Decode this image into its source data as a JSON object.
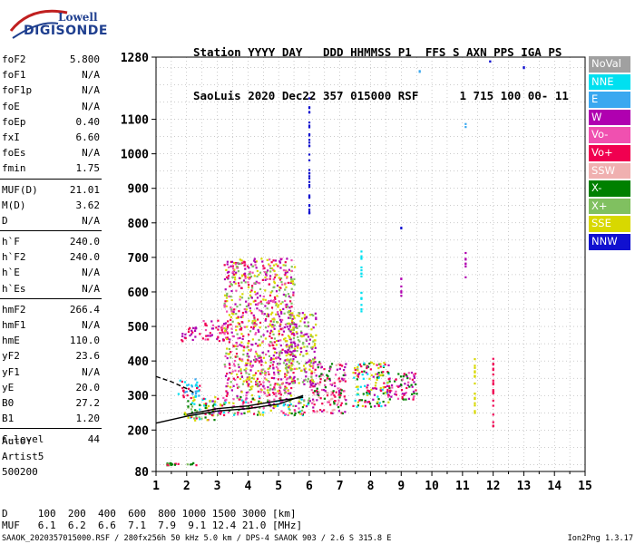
{
  "logo": {
    "brand": "Lowell",
    "product": "DIGISONDE"
  },
  "header": {
    "line1": "Station YYYY DAY   DDD HHMMSS P1  FFS S AXN PPS IGA PS",
    "line2": "SaoLuis 2020 Dec22 357 015000 RSF      1 715 100 00- 11"
  },
  "params": [
    {
      "label": "foF2",
      "value": "5.800"
    },
    {
      "label": "foF1",
      "value": "N/A"
    },
    {
      "label": "foF1p",
      "value": "N/A"
    },
    {
      "label": "foE",
      "value": "N/A"
    },
    {
      "label": "foEp",
      "value": "0.40"
    },
    {
      "label": "fxI",
      "value": "6.60"
    },
    {
      "label": "foEs",
      "value": "N/A"
    },
    {
      "label": "fmin",
      "value": "1.75"
    },
    {
      "label": "MUF(D)",
      "value": "21.01"
    },
    {
      "label": "M(D)",
      "value": "3.62"
    },
    {
      "label": "D",
      "value": "N/A"
    },
    {
      "label": "h`F",
      "value": "240.0"
    },
    {
      "label": "h`F2",
      "value": "240.0"
    },
    {
      "label": "h`E",
      "value": "N/A"
    },
    {
      "label": "h`Es",
      "value": "N/A"
    },
    {
      "label": "hmF2",
      "value": "266.4"
    },
    {
      "label": "hmF1",
      "value": "N/A"
    },
    {
      "label": "hmE",
      "value": "110.0"
    },
    {
      "label": "yF2",
      "value": "23.6"
    },
    {
      "label": "yF1",
      "value": "N/A"
    },
    {
      "label": "yE",
      "value": "20.0"
    },
    {
      "label": "B0",
      "value": "27.2"
    },
    {
      "label": "B1",
      "value": "1.20"
    },
    {
      "label": "C-level",
      "value": "44"
    }
  ],
  "auto": {
    "line1": "Auto:",
    "line2": "Artist5",
    "line3": "500200"
  },
  "muf_table": {
    "d_row": "D     100  200  400  600  800 1000 1500 3000 [km]",
    "muf_row": "MUF   6.1  6.2  6.6  7.1  7.9  9.1 12.4 21.0 [MHz]"
  },
  "footer": {
    "text": "SAAOK_2020357015000.RSF / 280fx256h 50 kHz 5.0 km / DPS-4 SAAOK 903 / 2.6 S 315.8 E",
    "version": "Ion2Png 1.3.17"
  },
  "legend": [
    {
      "label": "NoVal",
      "color": "#a0a0a0"
    },
    {
      "label": "NNE",
      "color": "#00e0f0"
    },
    {
      "label": "E",
      "color": "#3aa8f0"
    },
    {
      "label": "W",
      "color": "#b000b0"
    },
    {
      "label": "Vo-",
      "color": "#f050b0"
    },
    {
      "label": "Vo+",
      "color": "#f00050"
    },
    {
      "label": "SSW",
      "color": "#f0b0b0"
    },
    {
      "label": "X-",
      "color": "#008000"
    },
    {
      "label": "X+",
      "color": "#80c060"
    },
    {
      "label": "SSE",
      "color": "#d8d800"
    },
    {
      "label": "NNW",
      "color": "#1010d0"
    }
  ],
  "chart_data": {
    "type": "scatter",
    "xlim": [
      1,
      15
    ],
    "ylim": [
      80,
      1280
    ],
    "x_ticks": [
      "1",
      "2",
      "3",
      "4",
      "5",
      "6",
      "7",
      "8",
      "9",
      "10",
      "11",
      "12",
      "13",
      "14",
      "15"
    ],
    "y_ticks": [
      {
        "value": 80,
        "label": "80"
      },
      {
        "value": 200,
        "label": "200"
      },
      {
        "value": 300,
        "label": "300"
      },
      {
        "value": 400,
        "label": "400"
      },
      {
        "value": 500,
        "label": "500"
      },
      {
        "value": 600,
        "label": "600"
      },
      {
        "value": 700,
        "label": "700"
      },
      {
        "value": 800,
        "label": "800"
      },
      {
        "value": 900,
        "label": "900"
      },
      {
        "value": 1000,
        "label": "1000"
      },
      {
        "value": 1100,
        "label": "1100"
      },
      {
        "value": 1280,
        "label": "1280"
      }
    ],
    "grid": true,
    "echo_clusters": [
      {
        "x": [
          1.7,
          2.4
        ],
        "y": [
          290,
          350
        ],
        "colors": [
          "#00e0f0",
          "#3aa8f0",
          "#f00050"
        ]
      },
      {
        "x": [
          1.9,
          2.9
        ],
        "y": [
          230,
          300
        ],
        "colors": [
          "#f00050",
          "#00e0f0",
          "#008000",
          "#d8d800",
          "#80c060"
        ]
      },
      {
        "x": [
          2.8,
          6.0
        ],
        "y": [
          245,
          300
        ],
        "colors": [
          "#f00050",
          "#f050b0",
          "#b000b0",
          "#d8d800",
          "#008000",
          "#80c060",
          "#00e0f0"
        ]
      },
      {
        "x": [
          6.0,
          7.2
        ],
        "y": [
          250,
          400
        ],
        "colors": [
          "#f00050",
          "#f050b0",
          "#b000b0",
          "#008000",
          "#f0b0b0"
        ]
      },
      {
        "x": [
          7.4,
          8.6
        ],
        "y": [
          270,
          400
        ],
        "colors": [
          "#f00050",
          "#d8d800",
          "#b000b0",
          "#008000",
          "#00e0f0"
        ]
      },
      {
        "x": [
          8.5,
          9.5
        ],
        "y": [
          290,
          370
        ],
        "colors": [
          "#f00050",
          "#b000b0",
          "#008000",
          "#f050b0"
        ]
      },
      {
        "x": [
          2.5,
          3.4
        ],
        "y": [
          460,
          520
        ],
        "colors": [
          "#b000b0",
          "#f00050",
          "#f050b0"
        ]
      },
      {
        "x": [
          1.8,
          2.4
        ],
        "y": [
          460,
          500
        ],
        "colors": [
          "#f00050",
          "#b000b0"
        ]
      },
      {
        "x": [
          3.2,
          5.5
        ],
        "y": [
          300,
          700
        ],
        "colors": [
          "#b000b0",
          "#f050b0",
          "#f00050",
          "#80c060",
          "#d8d800"
        ]
      },
      {
        "x": [
          5.2,
          6.2
        ],
        "y": [
          330,
          550
        ],
        "colors": [
          "#d8d800",
          "#80c060",
          "#b000b0"
        ]
      },
      {
        "x": [
          1.3,
          2.3
        ],
        "y": [
          100,
          108
        ],
        "colors": [
          "#008000",
          "#80c060",
          "#f00050"
        ]
      }
    ],
    "vertical_strips": [
      {
        "x": 6.0,
        "y": [
          830,
          1180
        ],
        "color": "#1010d0"
      },
      {
        "x": 11.1,
        "y": [
          640,
          720
        ],
        "color": "#b000b0"
      },
      {
        "x": 11.1,
        "y": [
          1080,
          1100
        ],
        "color": "#3aa8f0"
      },
      {
        "x": 9.0,
        "y": [
          590,
          660
        ],
        "color": "#b000b0"
      },
      {
        "x": 9.0,
        "y": [
          780,
          790
        ],
        "color": "#1010d0"
      },
      {
        "x": 7.7,
        "y": [
          540,
          720
        ],
        "color": "#00e0f0"
      },
      {
        "x": 11.4,
        "y": [
          240,
          420
        ],
        "color": "#d8d800"
      },
      {
        "x": 12.0,
        "y": [
          210,
          410
        ],
        "color": "#f00050"
      },
      {
        "x": 11.9,
        "y": [
          1270,
          1275
        ],
        "color": "#1010d0"
      },
      {
        "x": 13.0,
        "y": [
          1250,
          1255
        ],
        "color": "#1010d0"
      },
      {
        "x": 9.6,
        "y": [
          1240,
          1245
        ],
        "color": "#3aa8f0"
      }
    ],
    "trace_lines": [
      {
        "x": [
          1.0,
          2.0,
          3.0,
          4.0,
          5.0,
          5.8
        ],
        "y": [
          220,
          240,
          255,
          262,
          275,
          300
        ]
      },
      {
        "x": [
          1.0,
          1.5,
          2.0,
          2.3
        ],
        "y": [
          355,
          340,
          320,
          305
        ]
      },
      {
        "x": [
          2.0,
          3.0,
          4.0,
          5.0,
          5.8
        ],
        "y": [
          245,
          262,
          270,
          285,
          295
        ]
      }
    ]
  }
}
